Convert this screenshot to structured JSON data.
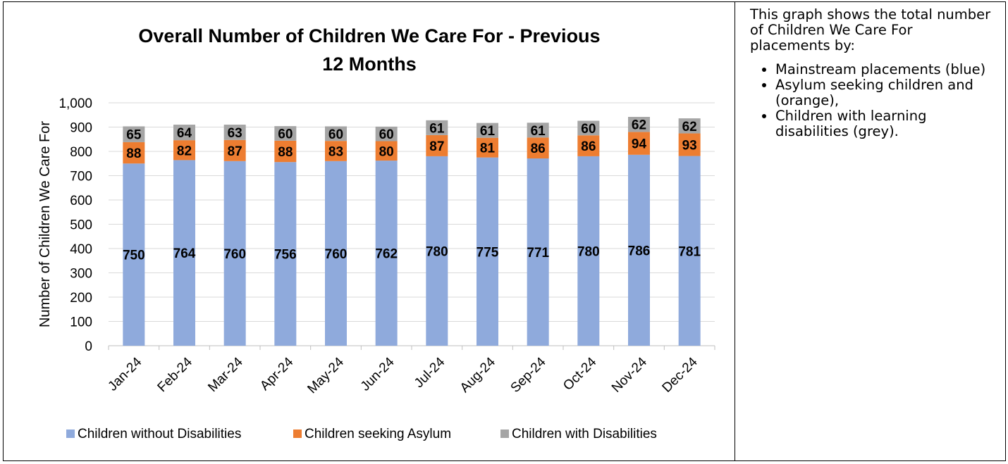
{
  "chart_data": {
    "type": "bar",
    "stacked": true,
    "title": "Overall Number of Children We Care For - Previous 12 Months",
    "title_lines": [
      "Overall Number of Children We Care For - Previous",
      "12 Months"
    ],
    "xlabel": "",
    "ylabel": "Number of Children We Care For",
    "ylim": [
      0,
      1000
    ],
    "yticks": [
      0,
      100,
      200,
      300,
      400,
      500,
      600,
      700,
      800,
      900,
      1000
    ],
    "ytick_labels": [
      "0",
      "100",
      "200",
      "300",
      "400",
      "500",
      "600",
      "700",
      "800",
      "900",
      "1,000"
    ],
    "grid": true,
    "legend_position": "bottom",
    "categories": [
      "Jan-24",
      "Feb-24",
      "Mar-24",
      "Apr-24",
      "May-24",
      "Jun-24",
      "Jul-24",
      "Aug-24",
      "Sep-24",
      "Oct-24",
      "Nov-24",
      "Dec-24"
    ],
    "series": [
      {
        "name": "Children without Disabilities",
        "color": "#8faadc",
        "values": [
          750,
          764,
          760,
          756,
          760,
          762,
          780,
          775,
          771,
          780,
          786,
          781
        ]
      },
      {
        "name": "Children seeking Asylum",
        "color": "#ed7d31",
        "values": [
          88,
          82,
          87,
          88,
          83,
          80,
          87,
          81,
          86,
          86,
          94,
          93
        ]
      },
      {
        "name": "Children with Disabilities",
        "color": "#a5a5a5",
        "values": [
          65,
          64,
          63,
          60,
          60,
          60,
          61,
          61,
          61,
          60,
          62,
          62
        ]
      }
    ]
  },
  "side_panel": {
    "intro": "This graph shows the total number of Children We Care For placements by:",
    "bullets": [
      "Mainstream placements (blue)",
      "Asylum seeking children and (orange),",
      "Children with learning disabilities (grey)."
    ]
  }
}
